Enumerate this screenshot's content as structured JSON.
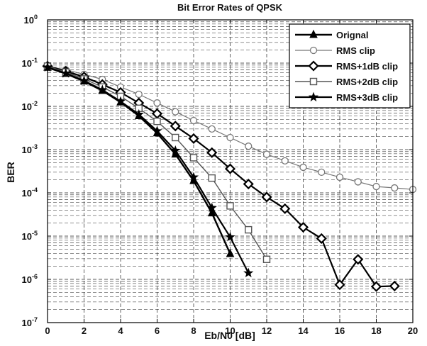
{
  "chart_data": {
    "type": "line",
    "title": "Bit Error Rates of QPSK",
    "xlabel": "Eb/N0 [dB]",
    "ylabel": "BER",
    "xlim": [
      0,
      20
    ],
    "ylim": [
      1e-07,
      1
    ],
    "yscale": "log",
    "grid": "major and minor, dashed",
    "legend_position": "top-right",
    "x_ticks": [
      0,
      2,
      4,
      6,
      8,
      10,
      12,
      14,
      16,
      18,
      20
    ],
    "y_ticks": [
      {
        "value": 1.0,
        "mantissa": "10",
        "exp": "0"
      },
      {
        "value": 0.1,
        "mantissa": "10",
        "exp": "-1"
      },
      {
        "value": 0.01,
        "mantissa": "10",
        "exp": "-2"
      },
      {
        "value": 0.001,
        "mantissa": "10",
        "exp": "-3"
      },
      {
        "value": 0.0001,
        "mantissa": "10",
        "exp": "-4"
      },
      {
        "value": 1e-05,
        "mantissa": "10",
        "exp": "-5"
      },
      {
        "value": 1e-06,
        "mantissa": "10",
        "exp": "-6"
      },
      {
        "value": 1e-07,
        "mantissa": "10",
        "exp": "-7"
      }
    ],
    "series": [
      {
        "name": "Orignal",
        "marker": "triangle",
        "color": "#000000",
        "x": [
          0,
          1,
          2,
          3,
          4,
          5,
          6,
          7,
          8,
          9,
          10
        ],
        "y": [
          0.079,
          0.057,
          0.038,
          0.023,
          0.0125,
          0.006,
          0.0024,
          0.00078,
          0.00019,
          3.4e-05,
          3.9e-06
        ]
      },
      {
        "name": "RMS clip",
        "marker": "circle",
        "color": "#777777",
        "x": [
          0,
          1,
          2,
          3,
          4,
          5,
          6,
          7,
          8,
          9,
          10,
          11,
          12,
          13,
          14,
          15,
          16,
          17,
          18,
          19,
          20
        ],
        "y": [
          0.085,
          0.07,
          0.055,
          0.042,
          0.028,
          0.019,
          0.012,
          0.0075,
          0.0047,
          0.003,
          0.0019,
          0.0012,
          0.00078,
          0.00055,
          0.00039,
          0.0003,
          0.00023,
          0.00018,
          0.00014,
          0.00013,
          0.00012
        ]
      },
      {
        "name": "RMS+1dB clip",
        "marker": "diamond",
        "color": "#000000",
        "x": [
          0,
          1,
          2,
          3,
          4,
          5,
          6,
          7,
          8,
          9,
          10,
          11,
          12,
          13,
          14,
          15,
          16,
          17,
          18,
          19
        ],
        "y": [
          0.085,
          0.065,
          0.048,
          0.032,
          0.021,
          0.012,
          0.0068,
          0.0035,
          0.0018,
          0.00085,
          0.00036,
          0.00016,
          8e-05,
          4.3e-05,
          1.6e-05,
          8.8e-06,
          7.5e-07,
          2.9e-06,
          6.8e-07,
          7e-07
        ]
      },
      {
        "name": "RMS+2dB clip",
        "marker": "square",
        "color": "#555555",
        "x": [
          0,
          1,
          2,
          3,
          4,
          5,
          6,
          7,
          8,
          9,
          10,
          11,
          12
        ],
        "y": [
          0.085,
          0.062,
          0.043,
          0.028,
          0.017,
          0.009,
          0.0045,
          0.0019,
          0.00065,
          0.00022,
          5e-05,
          1.4e-05,
          2.9e-06
        ]
      },
      {
        "name": "RMS+3dB clip",
        "marker": "star",
        "color": "#000000",
        "x": [
          0,
          1,
          2,
          3,
          4,
          5,
          6,
          7,
          8,
          9,
          10,
          11
        ],
        "y": [
          0.08,
          0.058,
          0.039,
          0.024,
          0.013,
          0.0065,
          0.0027,
          0.00095,
          0.00023,
          4.5e-05,
          9.5e-06,
          1.4e-06
        ]
      }
    ]
  }
}
